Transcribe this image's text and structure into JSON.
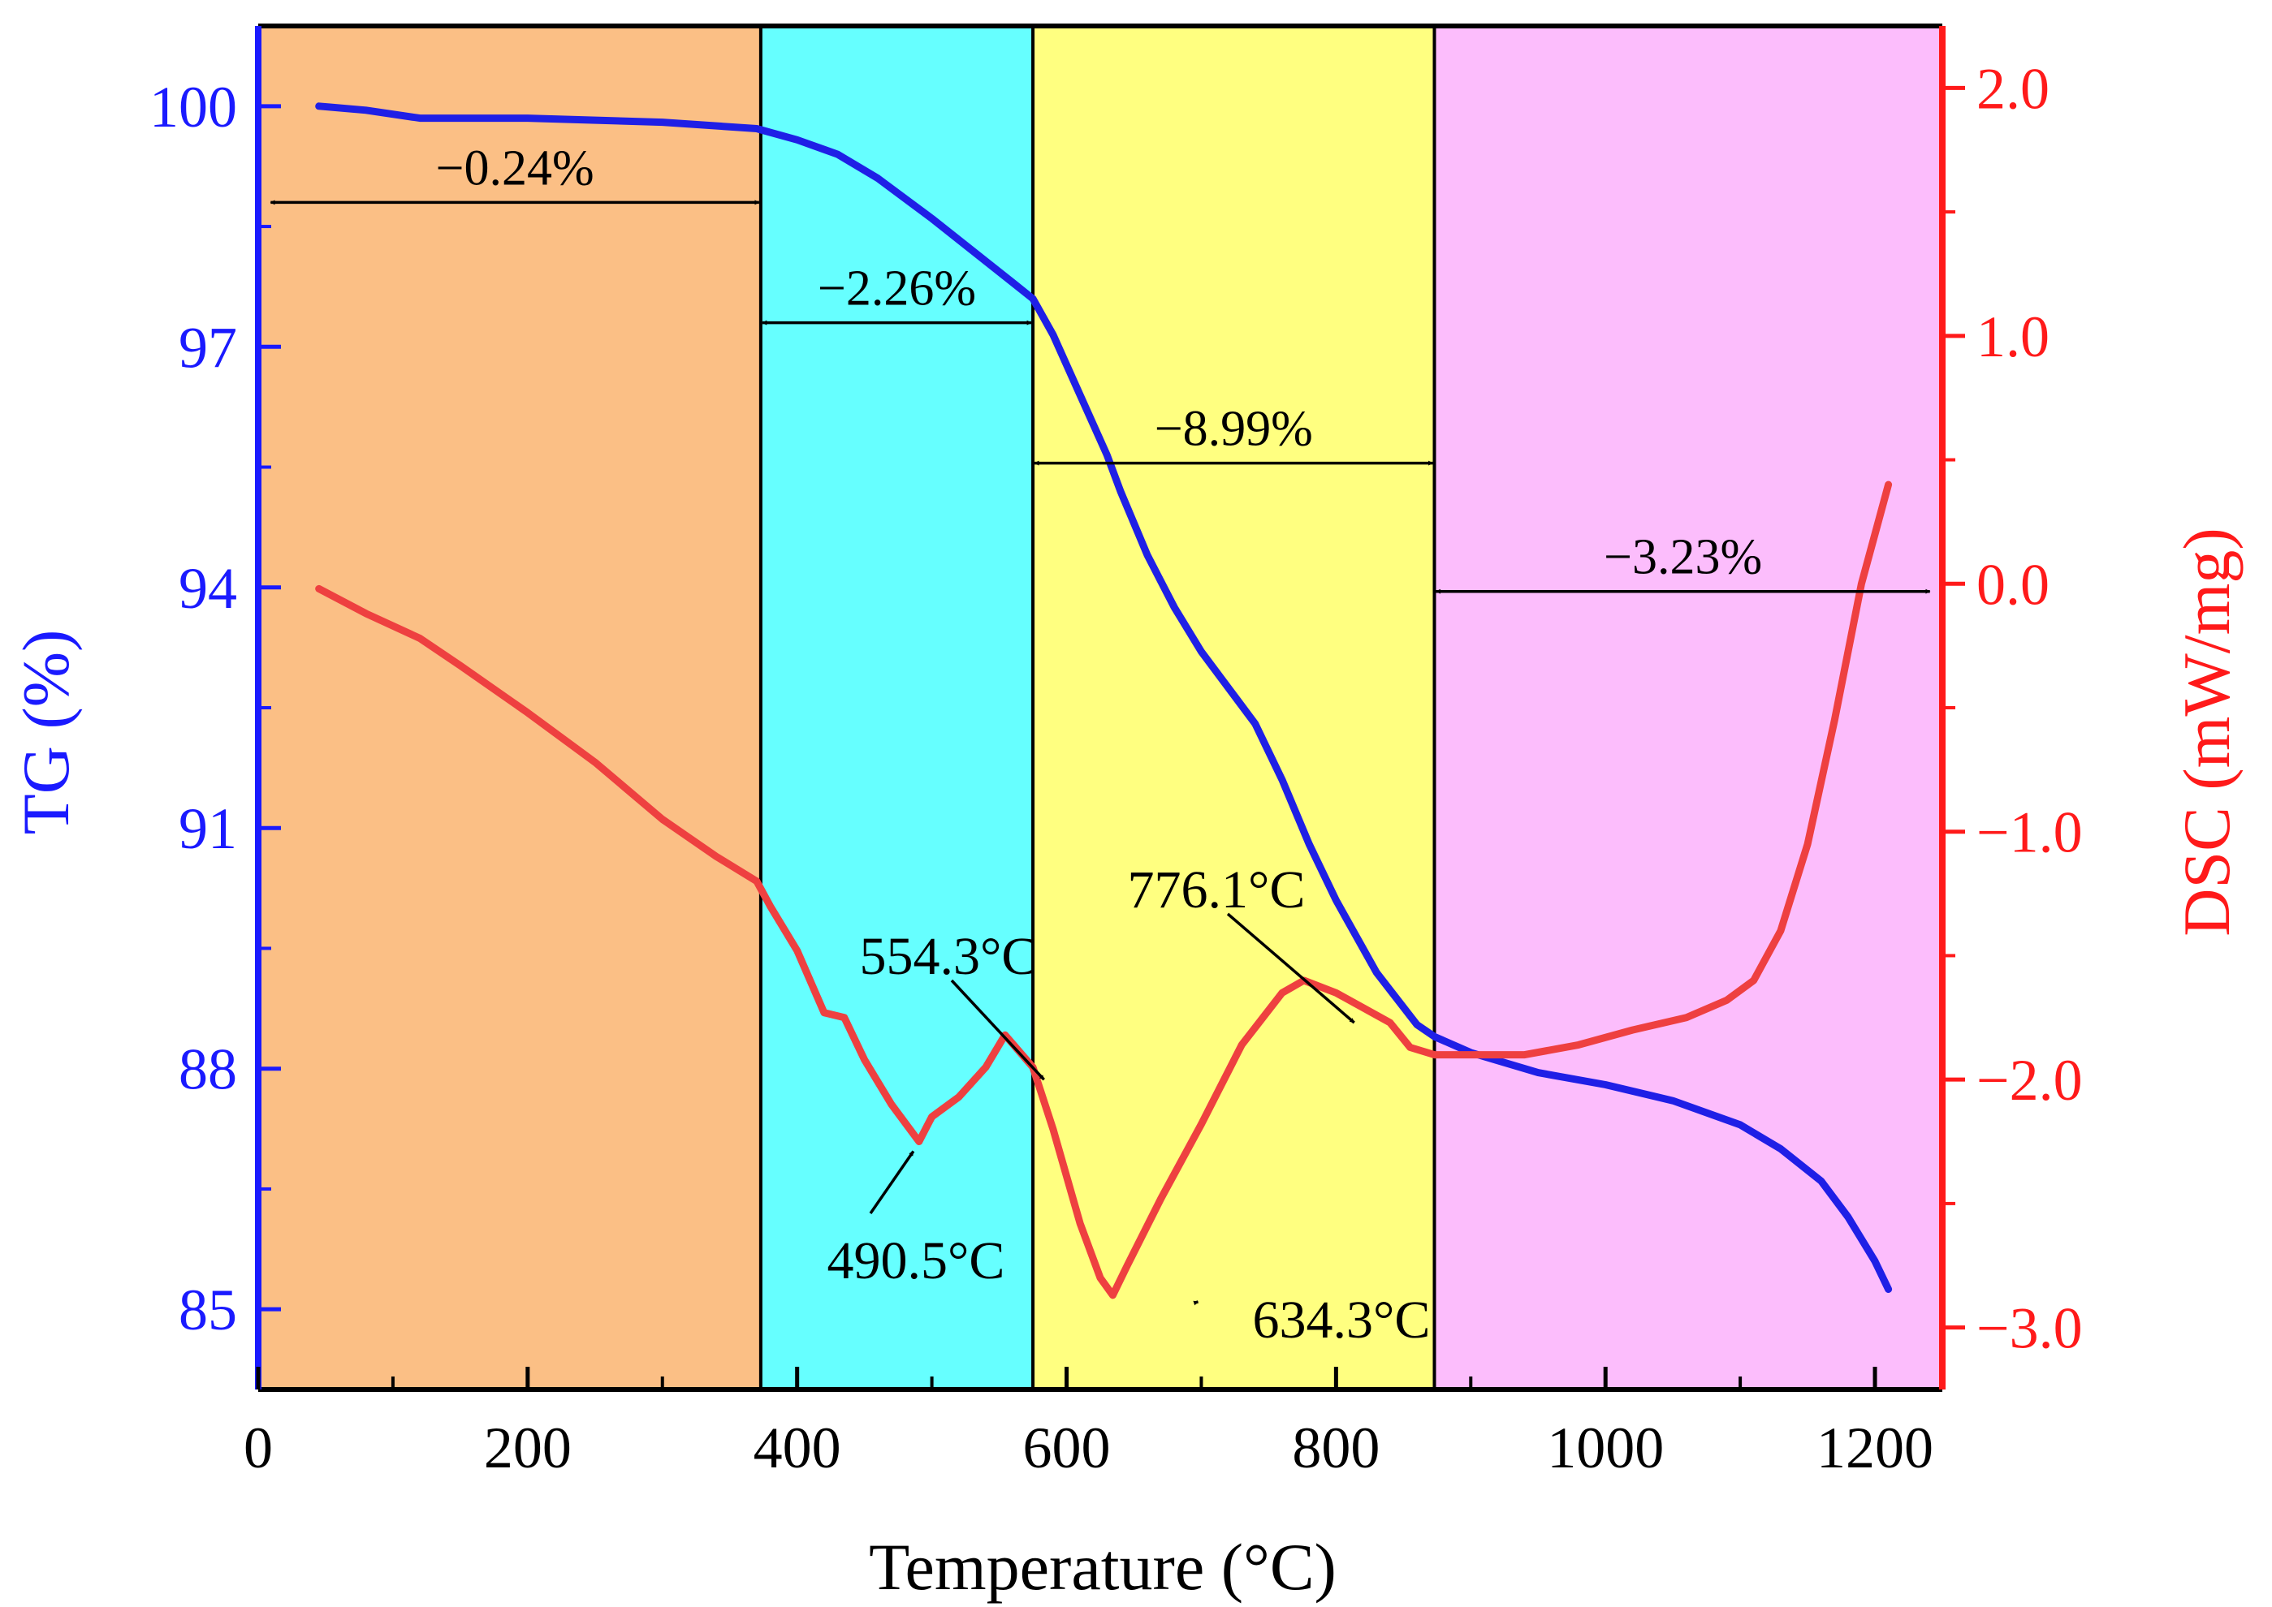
{
  "chart_data": {
    "type": "line",
    "xlabel": "Temperature (°C)",
    "ylabel_left": "TG (%)",
    "ylabel_right": "DSC (mW/mg)",
    "xlim": [
      0,
      1250
    ],
    "ylim_left": [
      84,
      101
    ],
    "ylim_right": [
      -3.25,
      2.25
    ],
    "x_ticks": [
      0,
      200,
      400,
      600,
      800,
      1000,
      1200
    ],
    "x_tick_labels": [
      "0",
      "200",
      "400",
      "600",
      "800",
      "1000",
      "1200"
    ],
    "left_ticks": [
      85,
      88,
      91,
      94,
      97,
      100
    ],
    "left_tick_labels": [
      "85",
      "88",
      "91",
      "94",
      "97",
      "100"
    ],
    "right_ticks": [
      -3.0,
      -2.0,
      -1.0,
      0.0,
      1.0,
      2.0
    ],
    "right_tick_labels": [
      "−3.0",
      "−2.0",
      "−1.0",
      "0.0",
      "1.0",
      "2.0"
    ],
    "colors": {
      "tg": "#1f1fe6",
      "dsc": "#ee4040",
      "left_axis": "#1a1aff",
      "right_axis": "#ff1a1a"
    },
    "regions": [
      {
        "x0": 0,
        "x1": 373,
        "color": "#fbbf85"
      },
      {
        "x0": 373,
        "x1": 575,
        "color": "#66ffff"
      },
      {
        "x0": 575,
        "x1": 873,
        "color": "#ffff80"
      },
      {
        "x0": 873,
        "x1": 1250,
        "color": "#fcbdfc"
      }
    ],
    "boundaries": [
      373,
      575,
      873
    ],
    "series": [
      {
        "name": "TG",
        "axis": "left",
        "x": [
          45,
          80,
          120,
          200,
          300,
          370,
          400,
          430,
          460,
          500,
          530,
          560,
          575,
          590,
          610,
          630,
          640,
          660,
          680,
          700,
          720,
          740,
          760,
          780,
          800,
          830,
          860,
          873,
          900,
          950,
          1000,
          1050,
          1100,
          1130,
          1160,
          1180,
          1200,
          1210
        ],
        "y": [
          100.0,
          99.95,
          99.85,
          99.85,
          99.8,
          99.72,
          99.58,
          99.4,
          99.1,
          98.6,
          98.2,
          97.8,
          97.6,
          97.15,
          96.4,
          95.65,
          95.2,
          94.4,
          93.75,
          93.2,
          92.75,
          92.3,
          91.6,
          90.8,
          90.1,
          89.2,
          88.55,
          88.4,
          88.2,
          87.95,
          87.8,
          87.6,
          87.3,
          87.0,
          86.6,
          86.15,
          85.6,
          85.25
        ]
      },
      {
        "name": "DSC",
        "axis": "right",
        "x": [
          45,
          80,
          120,
          150,
          200,
          250,
          300,
          340,
          370,
          380,
          400,
          420,
          435,
          450,
          470,
          490.5,
          500,
          520,
          540,
          554.3,
          575,
          590,
          610,
          625,
          634.3,
          645,
          670,
          700,
          730,
          760,
          776.1,
          800,
          820,
          840,
          855,
          873,
          900,
          940,
          980,
          1020,
          1060,
          1090,
          1110,
          1130,
          1150,
          1170,
          1190,
          1210
        ],
        "y": [
          -0.02,
          -0.12,
          -0.22,
          -0.33,
          -0.52,
          -0.72,
          -0.95,
          -1.1,
          -1.2,
          -1.3,
          -1.48,
          -1.73,
          -1.75,
          -1.92,
          -2.1,
          -2.25,
          -2.15,
          -2.07,
          -1.95,
          -1.82,
          -1.95,
          -2.2,
          -2.58,
          -2.8,
          -2.87,
          -2.75,
          -2.48,
          -2.18,
          -1.86,
          -1.65,
          -1.6,
          -1.65,
          -1.71,
          -1.77,
          -1.87,
          -1.9,
          -1.9,
          -1.9,
          -1.86,
          -1.8,
          -1.75,
          -1.68,
          -1.6,
          -1.4,
          -1.05,
          -0.55,
          0.0,
          0.4
        ]
      }
    ],
    "mass_losses": [
      {
        "label": "−0.24%",
        "x0": 8,
        "x1": 373,
        "y": 98.8
      },
      {
        "label": "−2.26%",
        "x0": 373,
        "x1": 575,
        "y": 97.3
      },
      {
        "label": "−8.99%",
        "x0": 575,
        "x1": 873,
        "y": 95.55
      },
      {
        "label": "−3.23%",
        "x0": 873,
        "x1": 1242,
        "y": 93.95
      }
    ],
    "peaks": [
      {
        "label": "490.5°C",
        "x": 490.5,
        "dsc": -2.25
      },
      {
        "label": "554.3°C",
        "x": 554.3,
        "dsc": -1.82
      },
      {
        "label": "634.3°C",
        "x": 634.3,
        "dsc": -2.87
      },
      {
        "label": "776.1°C",
        "x": 776.1,
        "dsc": -1.6
      }
    ]
  }
}
